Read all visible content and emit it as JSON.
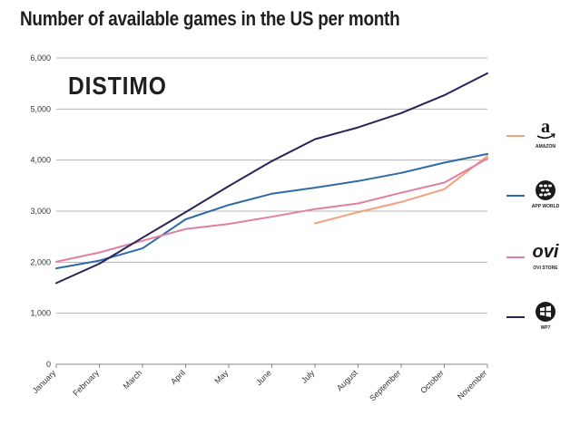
{
  "chart_data": {
    "type": "line",
    "title": "Number of available games in the US per month",
    "watermark": "DISTIMO",
    "categories": [
      "January",
      "February",
      "March",
      "April",
      "May",
      "June",
      "July",
      "August",
      "September",
      "October",
      "November"
    ],
    "ylim": [
      0,
      6000
    ],
    "yticks": [
      "0",
      "1,000",
      "2,000",
      "3,000",
      "4,000",
      "5,000",
      "6,000"
    ],
    "ytick_values": [
      0,
      1000,
      2000,
      3000,
      4000,
      5000,
      6000
    ],
    "grid": true,
    "legend_position": "right",
    "series": [
      {
        "name": "AMAZON",
        "color": "#f4a07c",
        "icon": "amazon-logo-icon",
        "values": [
          null,
          null,
          null,
          null,
          null,
          null,
          2760,
          2980,
          3180,
          3430,
          4080
        ]
      },
      {
        "name": "APP WORLD",
        "color": "#2e6aa8",
        "icon": "blackberry-logo-icon",
        "values": [
          1880,
          2030,
          2270,
          2840,
          3120,
          3340,
          3460,
          3590,
          3750,
          3950,
          4120
        ]
      },
      {
        "name": "OVI STORE",
        "color": "#e07fa2",
        "icon": "ovi-logo-icon",
        "values": [
          2010,
          2190,
          2420,
          2650,
          2750,
          2890,
          3040,
          3150,
          3360,
          3560,
          4030
        ]
      },
      {
        "name": "WP7",
        "color": "#282457",
        "icon": "windows-logo-icon",
        "values": [
          1590,
          1970,
          2480,
          2980,
          3490,
          3980,
          4410,
          4640,
          4920,
          5270,
          5700
        ]
      }
    ]
  }
}
